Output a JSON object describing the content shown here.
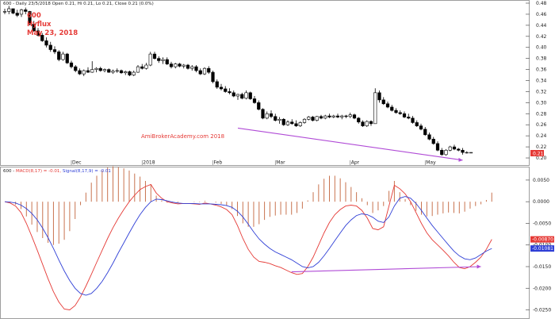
{
  "chart_data": [
    {
      "type": "candlestick",
      "panel": "price",
      "header": "600 - Daily 23/5/2018 Open 0.21, Hi 0.21, Lo 0.21, Close 0.21 (0.0%)",
      "annotations": {
        "symbol": "600",
        "name": "Hyflux",
        "date": "May 23, 2018"
      },
      "watermark": "AmiBrokerAcademy.com 2018",
      "ylim": [
        0.19,
        0.48
      ],
      "yticks": [
        "0.48",
        "0.46",
        "0.44",
        "0.42",
        "0.40",
        "0.38",
        "0.36",
        "0.34",
        "0.32",
        "0.30",
        "0.28",
        "0.26",
        "0.24",
        "0.22",
        "0.20"
      ],
      "last_value_label": "0.21",
      "months": [
        "Dec",
        "2018",
        "Feb",
        "Mar",
        "Apr",
        "May"
      ],
      "ohlc": [
        [
          0.465,
          0.47,
          0.46,
          0.465
        ],
        [
          0.465,
          0.475,
          0.46,
          0.47
        ],
        [
          0.47,
          0.47,
          0.46,
          0.462
        ],
        [
          0.462,
          0.468,
          0.455,
          0.458
        ],
        [
          0.46,
          0.47,
          0.455,
          0.468
        ],
        [
          0.468,
          0.472,
          0.46,
          0.465
        ],
        [
          0.465,
          0.466,
          0.44,
          0.442
        ],
        [
          0.442,
          0.448,
          0.428,
          0.43
        ],
        [
          0.43,
          0.435,
          0.42,
          0.422
        ],
        [
          0.422,
          0.426,
          0.41,
          0.412
        ],
        [
          0.412,
          0.418,
          0.4,
          0.404
        ],
        [
          0.404,
          0.41,
          0.392,
          0.396
        ],
        [
          0.396,
          0.402,
          0.388,
          0.392
        ],
        [
          0.392,
          0.395,
          0.375,
          0.378
        ],
        [
          0.378,
          0.392,
          0.376,
          0.388
        ],
        [
          0.388,
          0.39,
          0.37,
          0.372
        ],
        [
          0.372,
          0.376,
          0.362,
          0.365
        ],
        [
          0.365,
          0.368,
          0.355,
          0.358
        ],
        [
          0.358,
          0.362,
          0.35,
          0.352
        ],
        [
          0.352,
          0.36,
          0.348,
          0.358
        ],
        [
          0.358,
          0.364,
          0.354,
          0.355
        ],
        [
          0.355,
          0.375,
          0.354,
          0.36
        ],
        [
          0.36,
          0.364,
          0.355,
          0.362
        ],
        [
          0.362,
          0.365,
          0.356,
          0.358
        ],
        [
          0.358,
          0.362,
          0.355,
          0.36
        ],
        [
          0.36,
          0.362,
          0.354,
          0.355
        ],
        [
          0.355,
          0.36,
          0.352,
          0.357
        ],
        [
          0.357,
          0.362,
          0.354,
          0.358
        ],
        [
          0.358,
          0.36,
          0.352,
          0.354
        ],
        [
          0.354,
          0.358,
          0.35,
          0.356
        ],
        [
          0.356,
          0.358,
          0.348,
          0.35
        ],
        [
          0.35,
          0.358,
          0.348,
          0.355
        ],
        [
          0.355,
          0.368,
          0.354,
          0.365
        ],
        [
          0.365,
          0.37,
          0.36,
          0.362
        ],
        [
          0.362,
          0.372,
          0.36,
          0.368
        ],
        [
          0.368,
          0.392,
          0.366,
          0.388
        ],
        [
          0.388,
          0.392,
          0.378,
          0.38
        ],
        [
          0.38,
          0.384,
          0.372,
          0.376
        ],
        [
          0.376,
          0.382,
          0.37,
          0.378
        ],
        [
          0.378,
          0.382,
          0.368,
          0.37
        ],
        [
          0.37,
          0.374,
          0.362,
          0.365
        ],
        [
          0.365,
          0.372,
          0.362,
          0.37
        ],
        [
          0.37,
          0.372,
          0.364,
          0.366
        ],
        [
          0.366,
          0.37,
          0.362,
          0.368
        ],
        [
          0.368,
          0.37,
          0.36,
          0.362
        ],
        [
          0.362,
          0.368,
          0.358,
          0.365
        ],
        [
          0.365,
          0.368,
          0.355,
          0.358
        ],
        [
          0.358,
          0.362,
          0.35,
          0.352
        ],
        [
          0.352,
          0.364,
          0.35,
          0.362
        ],
        [
          0.362,
          0.366,
          0.352,
          0.355
        ],
        [
          0.355,
          0.358,
          0.335,
          0.338
        ],
        [
          0.338,
          0.342,
          0.325,
          0.328
        ],
        [
          0.328,
          0.334,
          0.322,
          0.325
        ],
        [
          0.325,
          0.33,
          0.318,
          0.32
        ],
        [
          0.32,
          0.326,
          0.315,
          0.318
        ],
        [
          0.318,
          0.322,
          0.31,
          0.312
        ],
        [
          0.312,
          0.316,
          0.305,
          0.315
        ],
        [
          0.315,
          0.318,
          0.306,
          0.308
        ],
        [
          0.308,
          0.322,
          0.306,
          0.318
        ],
        [
          0.318,
          0.32,
          0.305,
          0.307
        ],
        [
          0.307,
          0.312,
          0.298,
          0.3
        ],
        [
          0.3,
          0.304,
          0.286,
          0.288
        ],
        [
          0.288,
          0.29,
          0.27,
          0.272
        ],
        [
          0.272,
          0.284,
          0.27,
          0.28
        ],
        [
          0.28,
          0.286,
          0.272,
          0.275
        ],
        [
          0.275,
          0.28,
          0.266,
          0.268
        ],
        [
          0.268,
          0.274,
          0.262,
          0.27
        ],
        [
          0.27,
          0.272,
          0.258,
          0.26
        ],
        [
          0.26,
          0.268,
          0.258,
          0.265
        ],
        [
          0.265,
          0.27,
          0.26,
          0.262
        ],
        [
          0.262,
          0.268,
          0.256,
          0.258
        ],
        [
          0.258,
          0.266,
          0.256,
          0.264
        ],
        [
          0.264,
          0.272,
          0.262,
          0.27
        ],
        [
          0.27,
          0.276,
          0.268,
          0.274
        ],
        [
          0.274,
          0.276,
          0.266,
          0.268
        ],
        [
          0.268,
          0.276,
          0.266,
          0.275
        ],
        [
          0.275,
          0.278,
          0.27,
          0.272
        ],
        [
          0.272,
          0.278,
          0.27,
          0.276
        ],
        [
          0.276,
          0.28,
          0.272,
          0.274
        ],
        [
          0.274,
          0.278,
          0.272,
          0.276
        ],
        [
          0.276,
          0.28,
          0.272,
          0.274
        ],
        [
          0.274,
          0.278,
          0.27,
          0.276
        ],
        [
          0.276,
          0.278,
          0.272,
          0.275
        ],
        [
          0.275,
          0.282,
          0.272,
          0.278
        ],
        [
          0.278,
          0.28,
          0.27,
          0.272
        ],
        [
          0.272,
          0.274,
          0.262,
          0.265
        ],
        [
          0.265,
          0.268,
          0.256,
          0.258
        ],
        [
          0.258,
          0.268,
          0.256,
          0.266
        ],
        [
          0.266,
          0.268,
          0.258,
          0.262
        ],
        [
          0.262,
          0.326,
          0.262,
          0.318
        ],
        [
          0.318,
          0.322,
          0.3,
          0.305
        ],
        [
          0.305,
          0.31,
          0.296,
          0.298
        ],
        [
          0.298,
          0.302,
          0.29,
          0.292
        ],
        [
          0.292,
          0.296,
          0.284,
          0.286
        ],
        [
          0.286,
          0.29,
          0.28,
          0.282
        ],
        [
          0.282,
          0.286,
          0.278,
          0.28
        ],
        [
          0.28,
          0.284,
          0.272,
          0.274
        ],
        [
          0.274,
          0.28,
          0.27,
          0.272
        ],
        [
          0.272,
          0.276,
          0.262,
          0.264
        ],
        [
          0.264,
          0.268,
          0.256,
          0.258
        ],
        [
          0.258,
          0.262,
          0.25,
          0.252
        ],
        [
          0.252,
          0.256,
          0.24,
          0.242
        ],
        [
          0.242,
          0.246,
          0.232,
          0.234
        ],
        [
          0.234,
          0.238,
          0.224,
          0.226
        ],
        [
          0.226,
          0.23,
          0.212,
          0.214
        ],
        [
          0.214,
          0.218,
          0.204,
          0.206
        ],
        [
          0.206,
          0.216,
          0.204,
          0.214
        ],
        [
          0.214,
          0.222,
          0.212,
          0.22
        ],
        [
          0.22,
          0.224,
          0.214,
          0.216
        ],
        [
          0.216,
          0.218,
          0.212,
          0.214
        ],
        [
          0.214,
          0.218,
          0.206,
          0.21
        ],
        [
          0.21,
          0.212,
          0.208,
          0.21
        ],
        [
          0.21,
          0.21,
          0.21,
          0.21
        ]
      ],
      "trendline": {
        "from": [
          56,
          0.254
        ],
        "to": [
          110,
          0.196
        ],
        "color": "#b04bd6"
      }
    },
    {
      "type": "line",
      "panel": "macd",
      "header_parts": [
        {
          "text": "600 - ",
          "color": "#222222"
        },
        {
          "text": "MACD(8,17) = -0.01,",
          "color": "#e53935"
        },
        {
          "text": " Signal(8,17,9) = -0.01",
          "color": "#2f3fd6"
        }
      ],
      "ylim": [
        -0.026,
        0.007
      ],
      "yticks": [
        "0.0050",
        "0.0000",
        "-0.0050",
        "-0.0100",
        "-0.0150",
        "-0.0200",
        "-0.0250"
      ],
      "value_labels": [
        {
          "text": "-0.00870",
          "color": "#e53935",
          "value": -0.0087
        },
        {
          "text": "-0.01081",
          "color": "#2f3fd6",
          "value": -0.01081
        }
      ],
      "series": [
        {
          "color": "#e53935",
          "values": [
            0.0,
            -0.0003,
            -0.001,
            -0.0025,
            -0.005,
            -0.008,
            -0.0112,
            -0.0145,
            -0.0178,
            -0.0208,
            -0.0232,
            -0.0248,
            -0.025,
            -0.024,
            -0.022,
            -0.0195,
            -0.0168,
            -0.014,
            -0.0112,
            -0.0085,
            -0.006,
            -0.0038,
            -0.0018,
            0.0,
            0.0015,
            0.0028,
            0.0035,
            0.004,
            0.002,
            0.0008,
            0.0,
            -0.0003,
            -0.0005,
            -0.0004,
            -0.0004,
            -0.0005,
            -0.0006,
            -0.0003,
            -0.0005,
            -0.0008,
            -0.0012,
            -0.0018,
            -0.003,
            -0.0055,
            -0.0085,
            -0.011,
            -0.0128,
            -0.0138,
            -0.014,
            -0.0143,
            -0.0148,
            -0.0152,
            -0.0158,
            -0.0164,
            -0.0168,
            -0.0166,
            -0.015,
            -0.0128,
            -0.01,
            -0.0072,
            -0.0048,
            -0.003,
            -0.0018,
            -0.001,
            -0.0008,
            -0.001,
            -0.002,
            -0.0038,
            -0.0062,
            -0.0065,
            -0.0058,
            -0.001,
            0.0038,
            0.003,
            0.0018,
            0.0,
            -0.0025,
            -0.005,
            -0.0072,
            -0.0088,
            -0.01,
            -0.0112,
            -0.0125,
            -0.014,
            -0.0152,
            -0.0155,
            -0.015,
            -0.014,
            -0.0128,
            -0.011,
            -0.0087
          ]
        },
        {
          "color": "#2f3fd6",
          "values": [
            0.0,
            -0.0001,
            -0.0003,
            -0.0008,
            -0.0016,
            -0.0027,
            -0.0042,
            -0.0061,
            -0.0083,
            -0.0108,
            -0.0135,
            -0.016,
            -0.0182,
            -0.02,
            -0.0212,
            -0.0216,
            -0.0212,
            -0.02,
            -0.0184,
            -0.0164,
            -0.0142,
            -0.0118,
            -0.0095,
            -0.0072,
            -0.005,
            -0.003,
            -0.0013,
            0.0,
            0.0006,
            0.0005,
            0.0002,
            -0.0001,
            -0.0003,
            -0.0004,
            -0.0004,
            -0.0004,
            -0.0005,
            -0.0005,
            -0.0005,
            -0.0006,
            -0.0007,
            -0.0009,
            -0.0013,
            -0.0022,
            -0.0035,
            -0.0052,
            -0.007,
            -0.0086,
            -0.0098,
            -0.0108,
            -0.0116,
            -0.0122,
            -0.0128,
            -0.0134,
            -0.0142,
            -0.015,
            -0.0153,
            -0.015,
            -0.014,
            -0.0125,
            -0.0108,
            -0.009,
            -0.0072,
            -0.0055,
            -0.0042,
            -0.0032,
            -0.0028,
            -0.003,
            -0.0036,
            -0.0045,
            -0.0048,
            -0.0035,
            -0.001,
            0.0008,
            0.0012,
            0.0008,
            -0.0004,
            -0.002,
            -0.0038,
            -0.0055,
            -0.007,
            -0.0085,
            -0.01,
            -0.0114,
            -0.0125,
            -0.0132,
            -0.0134,
            -0.013,
            -0.0122,
            -0.0114,
            -0.0108
          ]
        }
      ],
      "histogram": [
        0.0,
        -0.0002,
        -0.0007,
        -0.0017,
        -0.0034,
        -0.0053,
        -0.007,
        -0.0084,
        -0.0095,
        -0.01,
        -0.0097,
        -0.0088,
        -0.0068,
        -0.004,
        -0.0008,
        0.0021,
        0.0044,
        0.006,
        0.0072,
        0.0079,
        0.0082,
        0.008,
        0.0077,
        0.0072,
        0.0065,
        0.0058,
        0.0048,
        0.004,
        0.0014,
        0.0003,
        -0.0002,
        -0.0002,
        -0.0002,
        0.0,
        0.0,
        -0.0001,
        -0.0001,
        0.0002,
        0.0,
        -0.0002,
        -0.0005,
        -0.0009,
        -0.0017,
        -0.0033,
        -0.005,
        -0.0058,
        -0.0058,
        -0.0052,
        -0.0042,
        -0.0035,
        -0.0032,
        -0.003,
        -0.003,
        -0.003,
        -0.0026,
        -0.0016,
        0.0003,
        0.0022,
        0.004,
        0.0053,
        0.006,
        0.006,
        0.0054,
        0.0045,
        0.0034,
        0.0022,
        0.0008,
        -0.0008,
        -0.0026,
        -0.002,
        -0.001,
        0.0025,
        0.0048,
        0.0022,
        0.0006,
        -0.0008,
        -0.0021,
        -0.003,
        -0.0034,
        -0.0033,
        -0.003,
        -0.0027,
        -0.0025,
        -0.0026,
        -0.0027,
        -0.0023,
        -0.0016,
        -0.001,
        -0.0006,
        0.0004,
        0.0021
      ],
      "trendline": {
        "from": [
          53,
          -0.0162
        ],
        "to": [
          88,
          -0.015
        ],
        "color": "#b04bd6"
      }
    }
  ]
}
